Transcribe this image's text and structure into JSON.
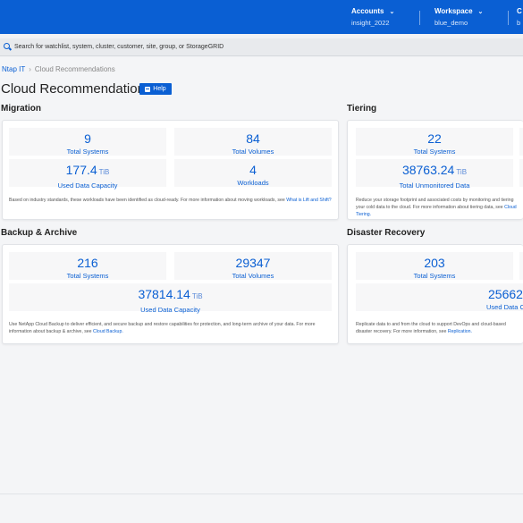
{
  "header": {
    "accounts_label": "Accounts",
    "accounts_value": "insight_2022",
    "workspace_label": "Workspace",
    "workspace_value": "blue_demo",
    "third_label": "C",
    "third_value": "b"
  },
  "search": {
    "placeholder": "Search for watchlist, system, cluster, customer, site, group, or StorageGRID"
  },
  "breadcrumb": {
    "root": "Ntap IT",
    "current": "Cloud Recommendations"
  },
  "page": {
    "title": "Cloud Recommendations",
    "help_label": "Help"
  },
  "migration": {
    "title": "Migration",
    "total_systems": "9",
    "total_systems_label": "Total Systems",
    "total_volumes": "84",
    "total_volumes_label": "Total Volumes",
    "used_capacity": "177.4",
    "used_capacity_unit": "TiB",
    "used_capacity_label": "Used Data Capacity",
    "workloads": "4",
    "workloads_label": "Workloads",
    "desc_text": "Based on industry standards, these workloads have been identified as cloud-ready. For more information about moving workloads, see",
    "desc_link": "What is Lift and Shift?"
  },
  "tiering": {
    "title": "Tiering",
    "total_systems": "22",
    "total_systems_label": "Total Systems",
    "unmonitored": "38763.24",
    "unmonitored_unit": "TiB",
    "unmonitored_label": "Total Unmonitored Data",
    "desc_text": "Reduce your storage footprint and associated costs by monitoring and tiering your cold data to the cloud. For more information about tiering data, see",
    "desc_link": "Cloud Tiering."
  },
  "backup": {
    "title": "Backup & Archive",
    "total_systems": "216",
    "total_systems_label": "Total Systems",
    "total_volumes": "29347",
    "total_volumes_label": "Total Volumes",
    "used_capacity": "37814.14",
    "used_capacity_unit": "TiB",
    "used_capacity_label": "Used Data Capacity",
    "desc_text": "Use NetApp Cloud Backup to deliver efficient, and secure backup and restore capabilities for protection, and long-term archive of your data. For more information about backup & archive, see",
    "desc_link": "Cloud Backup."
  },
  "dr": {
    "title": "Disaster Recovery",
    "total_systems": "203",
    "total_systems_label": "Total Systems",
    "used_capacity": "25662",
    "used_capacity_label": "Used Data C",
    "desc_text": "Replicate data to and from the cloud to support DevOps and cloud-based disaster recovery. For more information, see",
    "desc_link": "Replication."
  }
}
